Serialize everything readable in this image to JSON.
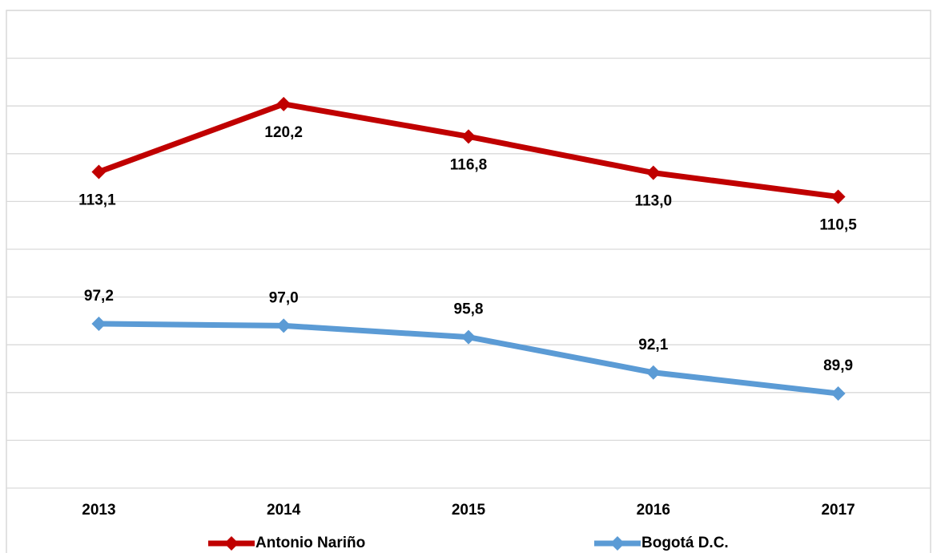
{
  "chart_data": {
    "type": "line",
    "categories": [
      "2013",
      "2014",
      "2015",
      "2016",
      "2017"
    ],
    "series": [
      {
        "name": "Antonio Nariño",
        "color": "#c00000",
        "values": [
          113.1,
          120.2,
          116.8,
          113.0,
          110.5
        ],
        "value_labels": [
          "113,1",
          "120,2",
          "116,8",
          "113,0",
          "110,5"
        ]
      },
      {
        "name": "Bogotá D.C.",
        "color": "#5b9bd5",
        "values": [
          97.2,
          97.0,
          95.8,
          92.1,
          89.9
        ],
        "value_labels": [
          "97,2",
          "97,0",
          "95,8",
          "92,1",
          "89,9"
        ]
      }
    ],
    "ylim": [
      80,
      130
    ],
    "yticks": [
      80,
      85,
      90,
      95,
      100,
      105,
      110,
      115,
      120,
      125,
      130
    ],
    "grid": true
  }
}
